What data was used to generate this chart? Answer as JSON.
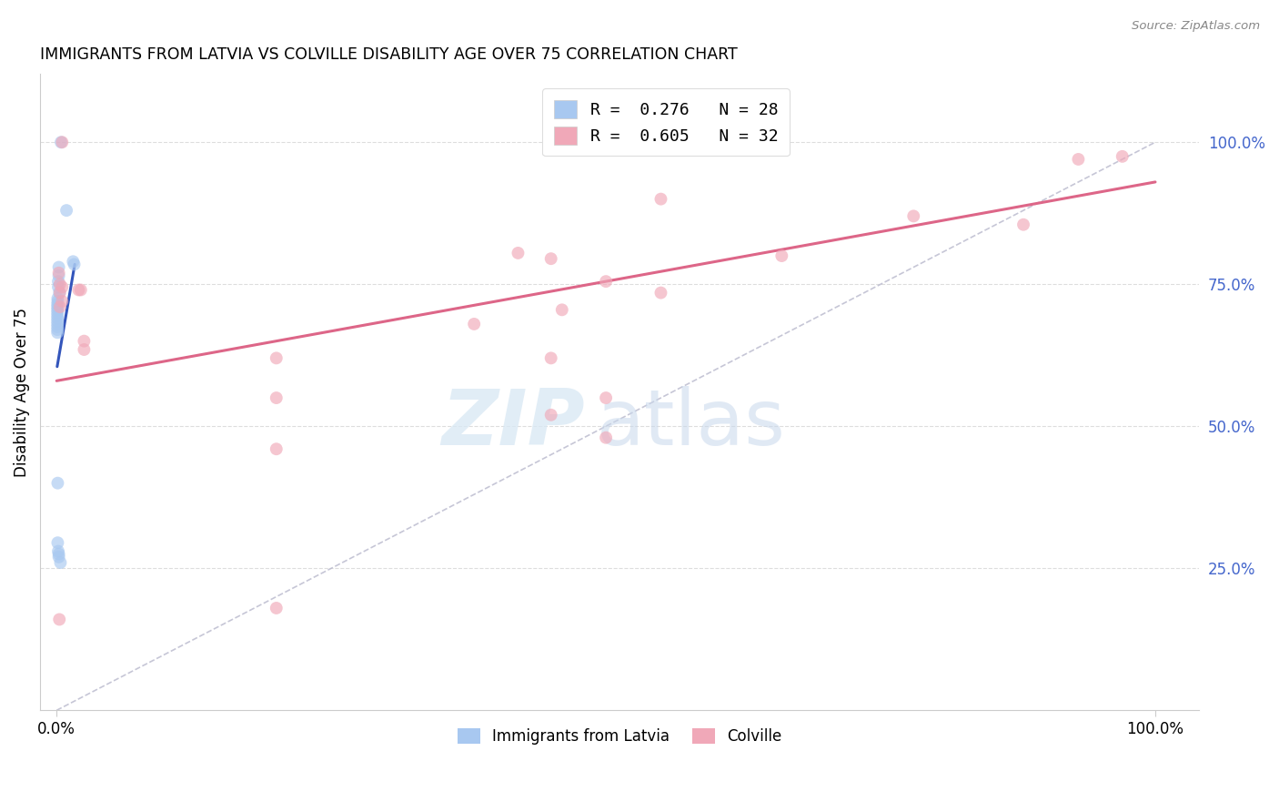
{
  "title": "IMMIGRANTS FROM LATVIA VS COLVILLE DISABILITY AGE OVER 75 CORRELATION CHART",
  "source": "Source: ZipAtlas.com",
  "ylabel": "Disability Age Over 75",
  "legend_entries": [
    {
      "label": "R =  0.276   N = 28",
      "color": "#a8c8f0"
    },
    {
      "label": "R =  0.605   N = 32",
      "color": "#f0a8b8"
    }
  ],
  "bottom_legend": [
    "Immigrants from Latvia",
    "Colville"
  ],
  "blue_x": [
    0.4,
    0.9,
    1.5,
    1.6,
    0.2,
    0.2,
    0.15,
    0.15,
    0.25,
    0.1,
    0.1,
    0.08,
    0.08,
    0.08,
    0.08,
    0.08,
    0.08,
    0.08,
    0.08,
    0.08,
    0.08,
    0.08,
    0.1,
    0.1,
    0.15,
    0.2,
    0.2,
    0.35
  ],
  "blue_y": [
    100.0,
    88.0,
    79.0,
    78.5,
    78.0,
    76.5,
    75.5,
    74.5,
    73.5,
    72.5,
    72.0,
    71.5,
    71.0,
    70.5,
    70.0,
    69.5,
    69.0,
    68.5,
    68.0,
    67.5,
    67.0,
    66.5,
    40.0,
    29.5,
    28.0,
    27.5,
    27.0,
    26.0
  ],
  "pink_x": [
    0.5,
    93.0,
    55.0,
    78.0,
    88.0,
    66.0,
    97.0,
    0.2,
    0.3,
    0.5,
    2.0,
    2.2,
    0.3,
    0.5,
    0.3,
    42.0,
    45.0,
    50.0,
    55.0,
    46.0,
    38.0,
    20.0,
    45.0,
    20.0,
    50.0,
    45.0,
    50.0,
    20.0,
    20.0,
    0.25,
    2.5,
    2.5
  ],
  "pink_y": [
    100.0,
    97.0,
    90.0,
    87.0,
    85.5,
    80.0,
    97.5,
    77.0,
    75.0,
    74.5,
    74.0,
    74.0,
    73.5,
    72.0,
    71.0,
    80.5,
    79.5,
    75.5,
    73.5,
    70.5,
    68.0,
    62.0,
    62.0,
    55.0,
    55.0,
    52.0,
    48.0,
    46.0,
    18.0,
    16.0,
    65.0,
    63.5
  ],
  "blue_line_x": [
    0.05,
    1.65
  ],
  "blue_line_y": [
    60.5,
    78.5
  ],
  "pink_line_x": [
    0.0,
    100.0
  ],
  "pink_line_y": [
    58.0,
    93.0
  ],
  "diag_line_x": [
    0.0,
    100.0
  ],
  "diag_line_y": [
    0.0,
    100.0
  ],
  "xlim_left": -1.5,
  "xlim_right": 104.0,
  "ylim_bottom": 0.0,
  "ylim_top": 112.0,
  "right_yticks": [
    25.0,
    50.0,
    75.0,
    100.0
  ],
  "right_yticklabels": [
    "25.0%",
    "50.0%",
    "75.0%",
    "100.0%"
  ],
  "background_color": "#ffffff",
  "grid_color": "#dddddd",
  "blue_color": "#a8c8f0",
  "pink_color": "#f0a8b8",
  "blue_line_color": "#3355bb",
  "pink_line_color": "#dd6688",
  "diag_line_color": "#b8b8cc",
  "scatter_alpha": 0.65,
  "scatter_size": 100,
  "right_tick_color": "#4466cc"
}
